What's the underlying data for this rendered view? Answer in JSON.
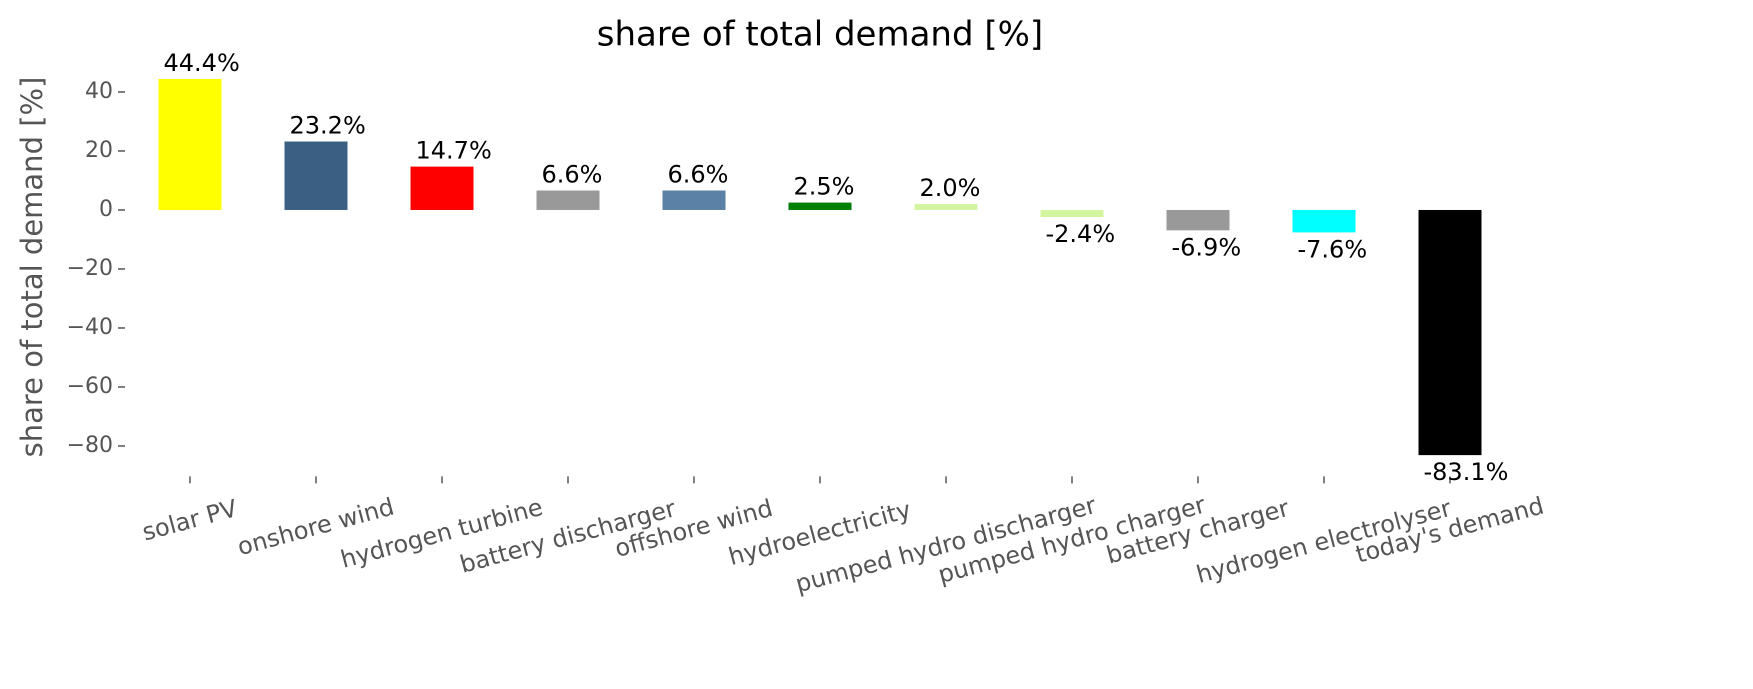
{
  "chart_data": {
    "type": "bar",
    "title": "share of total demand [%]",
    "y_label": "share of total demand [%]",
    "categories": [
      "solar PV",
      "onshore wind",
      "hydrogen turbine",
      "battery discharger",
      "offshore wind",
      "hydroelectricity",
      "pumped hydro discharger",
      "pumped hydro charger",
      "battery charger",
      "hydrogen electrolyser",
      "today's demand"
    ],
    "values": [
      44.4,
      23.2,
      14.7,
      6.6,
      6.6,
      2.5,
      2.0,
      -2.4,
      -6.9,
      -7.6,
      -83.1
    ],
    "value_labels": [
      "44.4%",
      "23.2%",
      "14.7%",
      "6.6%",
      "6.6%",
      "2.5%",
      "2.0%",
      "-2.4%",
      "-6.9%",
      "-7.6%",
      "-83.1%"
    ],
    "colors": [
      "#ffff00",
      "#3a5f82",
      "#ff0000",
      "#999999",
      "#5b82a6",
      "#008000",
      "#d4f5a0",
      "#d4f5a0",
      "#999999",
      "#00ffff",
      "#000000"
    ],
    "ylim": [
      -87.6,
      48.6
    ],
    "yticks": [
      {
        "value": -80,
        "label": "−80"
      },
      {
        "value": -60,
        "label": "−60"
      },
      {
        "value": -40,
        "label": "−40"
      },
      {
        "value": -20,
        "label": "−20"
      },
      0,
      20,
      40
    ],
    "grid": false
  }
}
